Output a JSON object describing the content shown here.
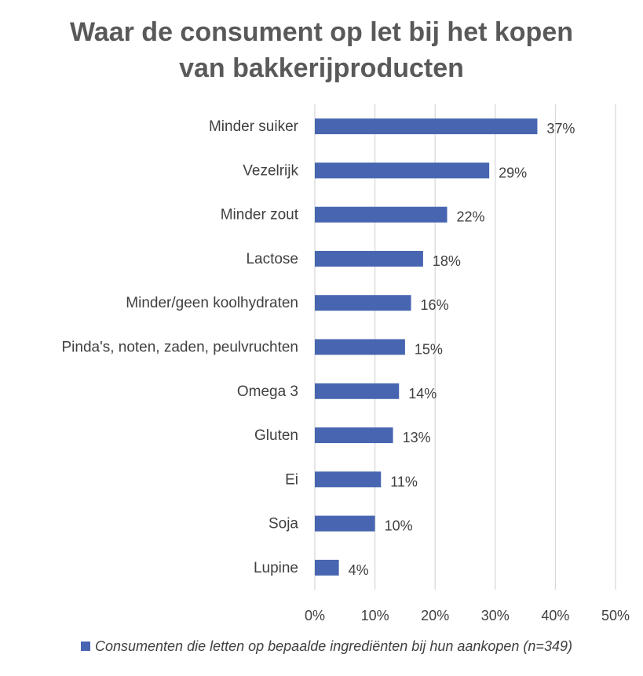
{
  "chart_data": {
    "type": "bar",
    "orientation": "horizontal",
    "title_lines": [
      "Waar de consument op let bij het kopen",
      "van bakkerijproducten"
    ],
    "categories": [
      "Minder suiker",
      "Vezelrijk",
      "Minder zout",
      "Lactose",
      "Minder/geen koolhydraten",
      "Pinda's, noten, zaden, peulvruchten",
      "Omega 3",
      "Gluten",
      "Ei",
      "Soja",
      "Lupine"
    ],
    "series": [
      {
        "name": "Consumenten die letten op bepaalde ingrediënten bij hun aankopen (n=349)",
        "values": [
          37,
          29,
          22,
          18,
          16,
          15,
          14,
          13,
          11,
          10,
          4
        ],
        "value_labels": [
          "37%",
          "29%",
          "22%",
          "18%",
          "16%",
          "15%",
          "14%",
          "13%",
          "11%",
          "10%",
          "4%"
        ],
        "color": "#4765B0"
      }
    ],
    "x_ticks": [
      "0%",
      "10%",
      "20%",
      "30%",
      "40%",
      "50%"
    ],
    "xlim": [
      0,
      50
    ],
    "grid": "vertical",
    "legend_position": "bottom",
    "gridline_color": "#D9D9D9"
  }
}
